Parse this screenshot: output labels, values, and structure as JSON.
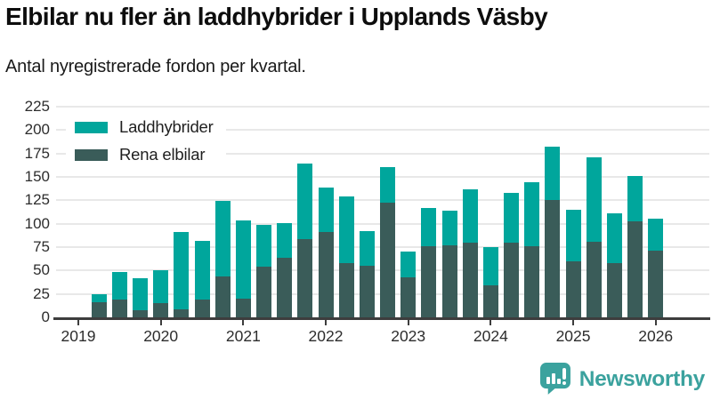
{
  "header": {
    "title": "Elbilar nu fler än laddhybrider i Upplands Väsby",
    "subtitle": "Antal nyregistrerade fordon per kvartal."
  },
  "legend": {
    "items": [
      {
        "label": "Laddhybrider",
        "color": "#00a69c"
      },
      {
        "label": "Rena elbilar",
        "color": "#3a5c59"
      }
    ]
  },
  "footer": {
    "brand": "Newsworthy",
    "logo_icon": "speech-bubble-bar-chart-icon",
    "brand_color": "#3ba29e"
  },
  "colors": {
    "laddhybrider": "#00a69c",
    "rena_elbilar": "#3a5c59",
    "gridline": "#e8e8e8",
    "axis": "#3d3d3d",
    "text": "#2d2d2d"
  },
  "chart_data": {
    "type": "bar",
    "stacked": true,
    "title": "Elbilar nu fler än laddhybrider i Upplands Väsby",
    "subtitle": "Antal nyregistrerade fordon per kvartal.",
    "xlabel": "",
    "ylabel": "",
    "ylim": [
      0,
      225
    ],
    "ytick_step": 25,
    "yticks": [
      0,
      25,
      50,
      75,
      100,
      125,
      150,
      175,
      200,
      225
    ],
    "grid": true,
    "legend_position": "top-left",
    "x_year_ticks": [
      "2019",
      "2020",
      "2021",
      "2022",
      "2023",
      "2024",
      "2025",
      "2026"
    ],
    "categories": [
      "2019 Q2",
      "2019 Q3",
      "2019 Q4",
      "2020 Q1",
      "2020 Q2",
      "2020 Q3",
      "2020 Q4",
      "2021 Q1",
      "2021 Q2",
      "2021 Q3",
      "2021 Q4",
      "2022 Q1",
      "2022 Q2",
      "2022 Q3",
      "2022 Q4",
      "2023 Q1",
      "2023 Q2",
      "2023 Q3",
      "2023 Q4",
      "2024 Q1",
      "2024 Q2",
      "2024 Q3",
      "2024 Q4",
      "2025 Q1",
      "2025 Q2",
      "2025 Q3",
      "2025 Q4",
      "2026 Q1"
    ],
    "series": [
      {
        "name": "Rena elbilar",
        "color": "#3a5c59",
        "values": [
          16,
          19,
          8,
          15,
          9,
          19,
          44,
          20,
          54,
          64,
          84,
          91,
          58,
          55,
          122,
          43,
          76,
          77,
          80,
          34,
          80,
          76,
          125,
          60,
          81,
          58,
          103,
          71
        ]
      },
      {
        "name": "Laddhybrider",
        "color": "#00a69c",
        "values": [
          9,
          29,
          34,
          35,
          83,
          63,
          81,
          84,
          45,
          37,
          81,
          47,
          71,
          37,
          38,
          28,
          41,
          37,
          57,
          41,
          53,
          68,
          57,
          55,
          90,
          53,
          48,
          34
        ]
      }
    ],
    "stacked_totals": [
      25,
      48,
      42,
      50,
      92,
      82,
      125,
      104,
      99,
      101,
      165,
      138,
      129,
      92,
      160,
      71,
      117,
      114,
      137,
      75,
      133,
      144,
      182,
      115,
      171,
      111,
      151,
      105
    ]
  }
}
